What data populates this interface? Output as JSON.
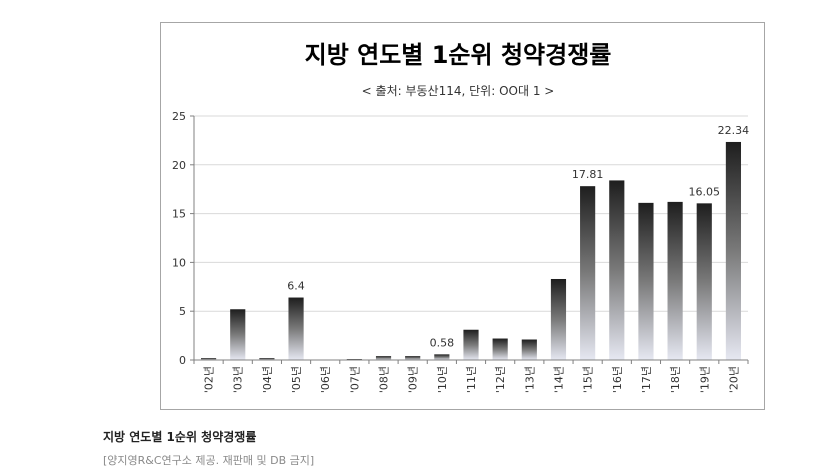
{
  "chart_data": {
    "type": "bar",
    "title": "지방 연도별 1순위 청약경쟁률",
    "subtitle": "< 출처: 부동산114, 단위: OO대 1 >",
    "xlabel": "",
    "ylabel": "",
    "ylim": [
      0,
      25
    ],
    "yticks": [
      "0",
      "5",
      "10",
      "15",
      "20",
      "25"
    ],
    "grid": true,
    "legend": "none",
    "categories": [
      "'02년",
      "'03년",
      "'04년",
      "'05년",
      "'06년",
      "'07년",
      "'08년",
      "'09년",
      "'10년",
      "'11년",
      "'12년",
      "'13년",
      "'14년",
      "'15년",
      "'16년",
      "'17년",
      "'18년",
      "'19년",
      "'20년"
    ],
    "values": [
      0.2,
      5.2,
      0.2,
      6.4,
      0.0,
      0.1,
      0.4,
      0.4,
      0.58,
      3.1,
      2.2,
      2.1,
      8.3,
      17.81,
      18.4,
      16.1,
      16.2,
      16.05,
      22.34
    ],
    "data_labels": [
      "",
      "",
      "",
      "6.4",
      "",
      "",
      "",
      "",
      "0.58",
      "",
      "",
      "",
      "",
      "17.81",
      "",
      "",
      "",
      "16.05",
      "22.34"
    ],
    "colors": {
      "bar_top": "#1e1e1e",
      "bar_mid": "#7a7a7a",
      "bar_bottom": "#e6e8f2",
      "grid": "#d9d9d9",
      "axis": "#808080"
    }
  },
  "caption": {
    "title": "지방 연도별 1순위 청약경쟁률",
    "note": "[양지영R&C연구소 제공. 재판매 및 DB 금지]"
  }
}
